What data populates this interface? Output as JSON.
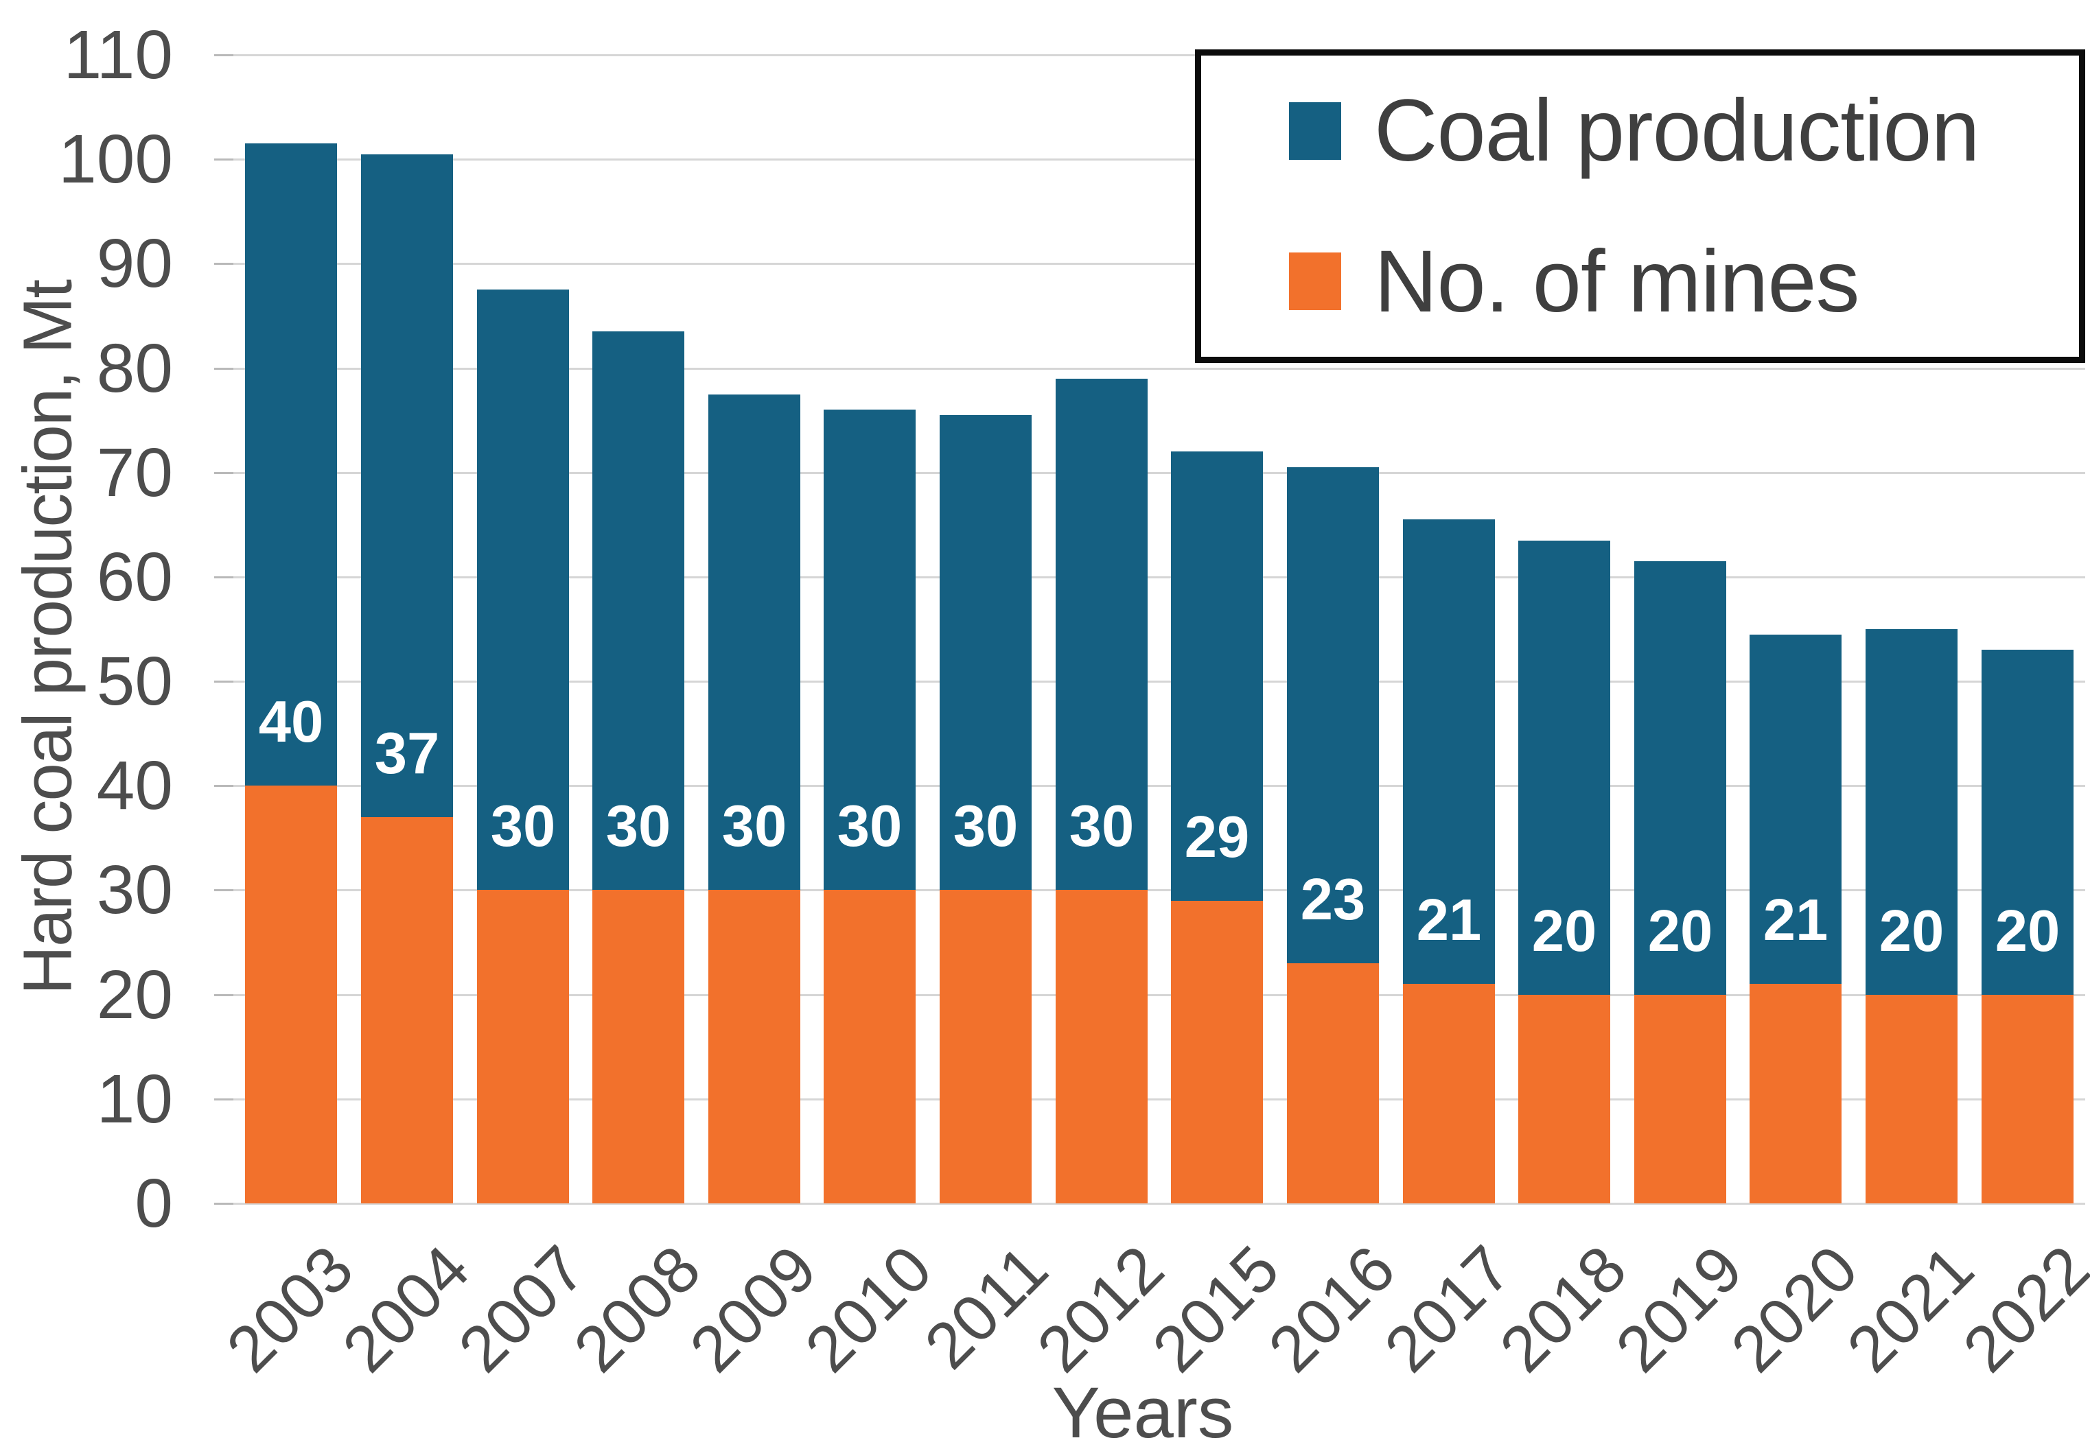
{
  "chart_data": {
    "type": "bar",
    "subtype": "overlapped-columns",
    "title": "",
    "xlabel": "Years",
    "ylabel": "Hard coal production, Mt",
    "ylim": [
      0,
      110
    ],
    "ytick_step": 10,
    "y_ticks": [
      0,
      10,
      20,
      30,
      40,
      50,
      60,
      70,
      80,
      90,
      100,
      110
    ],
    "grid": true,
    "legend_position": "top-right",
    "categories": [
      "2003",
      "2004",
      "2007",
      "2008",
      "2009",
      "2010",
      "2011",
      "2012",
      "2015",
      "2016",
      "2017",
      "2018",
      "2019",
      "2020",
      "2021",
      "2022"
    ],
    "series": [
      {
        "name": "Coal production",
        "color": "#156082",
        "unit": "Mt",
        "values": [
          101.5,
          100.5,
          87.5,
          83.5,
          77.5,
          76,
          75.5,
          79,
          72,
          70.5,
          65.5,
          63.5,
          61.5,
          54.5,
          55,
          53
        ]
      },
      {
        "name": "No. of mines",
        "color": "#F2712C",
        "unit": "mines",
        "values": [
          40,
          37,
          30,
          30,
          30,
          30,
          30,
          30,
          29,
          23,
          21,
          20,
          20,
          21,
          20,
          20
        ],
        "data_labels": [
          "40",
          "37",
          "30",
          "30",
          "30",
          "30",
          "30",
          "30",
          "29",
          "23",
          "21",
          "20",
          "20",
          "21",
          "20",
          "20"
        ],
        "data_label_color": "#ffffff"
      }
    ]
  },
  "style": {
    "gridline_color": "#d6d6d6",
    "axis_text_color": "#4d4d4d",
    "legend_text_color": "#3f3f3f",
    "legend_border_color": "#0c0c0c",
    "background_color": "#ffffff"
  }
}
